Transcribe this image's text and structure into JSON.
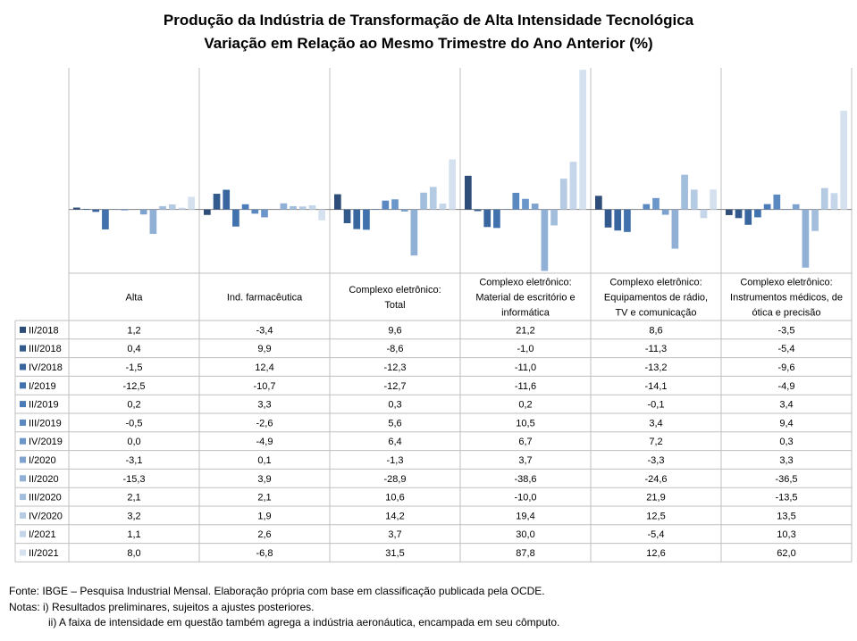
{
  "title": {
    "line1": "Produção da Indústria de Transformação de Alta Intensidade Tecnológica",
    "line2": "Variação em Relação ao Mesmo Trimestre do Ano Anterior (%)"
  },
  "chart_data": {
    "type": "bar",
    "categories": [
      [
        "Alta"
      ],
      [
        "Ind. farmacêutica"
      ],
      [
        "Complexo eletrônico:",
        "Total"
      ],
      [
        "Complexo eletrônico:",
        "Material de escritório e",
        "informática"
      ],
      [
        "Complexo eletrônico:",
        "Equipamentos de rádio,",
        "TV e comunicação"
      ],
      [
        "Complexo eletrônico:",
        "Instrumentos médicos, de",
        "ótica e precisão"
      ]
    ],
    "series": [
      {
        "name": "II/2018",
        "color": "#2e4d78",
        "values": [
          1.2,
          -3.4,
          9.6,
          21.2,
          8.6,
          -3.5
        ]
      },
      {
        "name": "III/2018",
        "color": "#335a8c",
        "values": [
          0.4,
          9.9,
          -8.6,
          -1.0,
          -11.3,
          -5.4
        ]
      },
      {
        "name": "IV/2018",
        "color": "#3a66a0",
        "values": [
          -1.5,
          12.4,
          -12.3,
          -11.0,
          -13.2,
          -9.6
        ]
      },
      {
        "name": "I/2019",
        "color": "#4172ae",
        "values": [
          -12.5,
          -10.7,
          -12.7,
          -11.6,
          -14.1,
          -4.9
        ]
      },
      {
        "name": "II/2019",
        "color": "#4a7cba",
        "values": [
          0.2,
          3.3,
          0.3,
          0.2,
          -0.1,
          3.4
        ]
      },
      {
        "name": "III/2019",
        "color": "#5a89c2",
        "values": [
          -0.5,
          -2.6,
          5.6,
          10.5,
          3.4,
          9.4
        ]
      },
      {
        "name": "IV/2019",
        "color": "#6b96ca",
        "values": [
          0.0,
          -4.9,
          6.4,
          6.7,
          7.2,
          0.3
        ]
      },
      {
        "name": "I/2020",
        "color": "#7ea3cf",
        "values": [
          -3.1,
          0.1,
          -1.3,
          3.7,
          -3.3,
          3.3
        ]
      },
      {
        "name": "II/2020",
        "color": "#90b0d6",
        "values": [
          -15.3,
          3.9,
          -28.9,
          -38.6,
          -24.6,
          -36.5
        ]
      },
      {
        "name": "III/2020",
        "color": "#a3bedd",
        "values": [
          2.1,
          2.1,
          10.6,
          -10.0,
          21.9,
          -13.5
        ]
      },
      {
        "name": "IV/2020",
        "color": "#b5cbe4",
        "values": [
          3.2,
          1.9,
          14.2,
          19.4,
          12.5,
          13.5
        ]
      },
      {
        "name": "I/2021",
        "color": "#c6d6ea",
        "values": [
          1.1,
          2.6,
          3.7,
          30.0,
          -5.4,
          10.3
        ]
      },
      {
        "name": "II/2021",
        "color": "#d5e1ef",
        "values": [
          8.0,
          -6.8,
          31.5,
          87.8,
          12.6,
          62.0
        ]
      }
    ],
    "display_values": [
      [
        "1,2",
        "-3,4",
        "9,6",
        "21,2",
        "8,6",
        "-3,5"
      ],
      [
        "0,4",
        "9,9",
        "-8,6",
        "-1,0",
        "-11,3",
        "-5,4"
      ],
      [
        "-1,5",
        "12,4",
        "-12,3",
        "-11,0",
        "-13,2",
        "-9,6"
      ],
      [
        "-12,5",
        "-10,7",
        "-12,7",
        "-11,6",
        "-14,1",
        "-4,9"
      ],
      [
        "0,2",
        "3,3",
        "0,3",
        "0,2",
        "-0,1",
        "3,4"
      ],
      [
        "-0,5",
        "-2,6",
        "5,6",
        "10,5",
        "3,4",
        "9,4"
      ],
      [
        "0,0",
        "-4,9",
        "6,4",
        "6,7",
        "7,2",
        "0,3"
      ],
      [
        "-3,1",
        "0,1",
        "-1,3",
        "3,7",
        "-3,3",
        "3,3"
      ],
      [
        "-15,3",
        "3,9",
        "-28,9",
        "-38,6",
        "-24,6",
        "-36,5"
      ],
      [
        "2,1",
        "2,1",
        "10,6",
        "-10,0",
        "21,9",
        "-13,5"
      ],
      [
        "3,2",
        "1,9",
        "14,2",
        "19,4",
        "12,5",
        "13,5"
      ],
      [
        "1,1",
        "2,6",
        "3,7",
        "30,0",
        "-5,4",
        "10,3"
      ],
      [
        "8,0",
        "-6,8",
        "31,5",
        "87,8",
        "12,6",
        "62,0"
      ]
    ],
    "ylim": [
      -40,
      89
    ],
    "grid": false,
    "legend": "data-table"
  },
  "notes": {
    "source": "Fonte: IBGE – Pesquisa Industrial Mensal. Elaboração própria com base em classificação publicada pela OCDE.",
    "note1": "Notas: i) Resultados preliminares, sujeitos a ajustes posteriores.",
    "note2": "ii) A faixa de intensidade em questão também agrega a indústria aeronáutica, encampada em seu cômputo."
  }
}
